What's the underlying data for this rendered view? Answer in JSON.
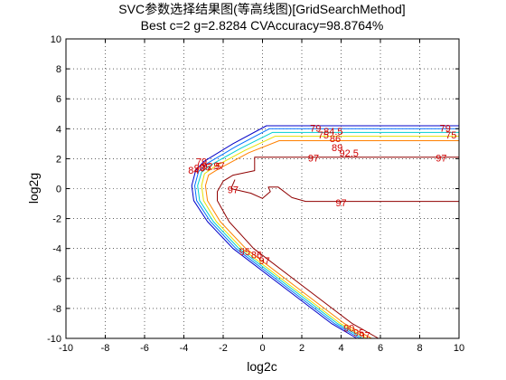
{
  "chart_data": {
    "type": "contour",
    "title_lines": [
      "SVC参数选择结果图(等高线图)[GridSearchMethod]",
      "Best c=2 g=2.8284 CVAccuracy=98.8764%"
    ],
    "xlabel": "log2c",
    "ylabel": "log2g",
    "xlim": [
      -10,
      10
    ],
    "ylim": [
      -10,
      10
    ],
    "x_ticks": [
      -10,
      -8,
      -6,
      -4,
      -2,
      0,
      2,
      4,
      6,
      8,
      10
    ],
    "y_ticks": [
      -10,
      -8,
      -6,
      -4,
      -2,
      0,
      2,
      4,
      6,
      8,
      10
    ],
    "x_tick_labels": [
      "-10",
      "-8",
      "-6",
      "-4",
      "-2",
      "0",
      "2",
      "4",
      "6",
      "8",
      "10"
    ],
    "y_tick_labels": [
      "-10",
      "-8",
      "-6",
      "-4",
      "-2",
      "0",
      "2",
      "4",
      "6",
      "8",
      "10"
    ],
    "grid": true,
    "label_color": "#d00000",
    "levels": [
      {
        "level": 79,
        "color": "#0000c8",
        "points": [
          [
            10,
            4.2
          ],
          [
            0.2,
            4.2
          ],
          [
            -1.5,
            3.0
          ],
          [
            -3.0,
            1.8
          ],
          [
            -3.4,
            1.2
          ],
          [
            -3.6,
            0.2
          ],
          [
            -3.5,
            -0.8
          ],
          [
            -2.8,
            -2.2
          ],
          [
            -1.5,
            -4.0
          ],
          [
            1.0,
            -6.5
          ],
          [
            3.5,
            -9.0
          ],
          [
            4.8,
            -10
          ]
        ]
      },
      {
        "level": 84.5,
        "color": "#0070ff",
        "points": [
          [
            10,
            4.0
          ],
          [
            0.35,
            4.0
          ],
          [
            -1.3,
            2.85
          ],
          [
            -2.8,
            1.7
          ],
          [
            -3.25,
            1.15
          ],
          [
            -3.45,
            0.2
          ],
          [
            -3.35,
            -0.8
          ],
          [
            -2.65,
            -2.2
          ],
          [
            -1.35,
            -4.0
          ],
          [
            1.15,
            -6.5
          ],
          [
            3.65,
            -9.0
          ],
          [
            4.95,
            -10
          ]
        ]
      },
      {
        "level": 90,
        "color": "#00d0d0",
        "points": [
          [
            10,
            3.75
          ],
          [
            0.5,
            3.75
          ],
          [
            -1.1,
            2.7
          ],
          [
            -2.6,
            1.6
          ],
          [
            -3.1,
            1.1
          ],
          [
            -3.3,
            0.2
          ],
          [
            -3.2,
            -0.8
          ],
          [
            -2.5,
            -2.2
          ],
          [
            -1.2,
            -4.0
          ],
          [
            1.3,
            -6.5
          ],
          [
            3.8,
            -9.0
          ],
          [
            5.1,
            -10
          ]
        ]
      },
      {
        "level": 92.5,
        "color": "#e8e000",
        "points": [
          [
            10,
            3.5
          ],
          [
            0.65,
            3.5
          ],
          [
            -0.9,
            2.55
          ],
          [
            -2.4,
            1.5
          ],
          [
            -2.95,
            1.0
          ],
          [
            -3.1,
            0.2
          ],
          [
            -3.0,
            -0.8
          ],
          [
            -2.35,
            -2.2
          ],
          [
            -1.05,
            -4.0
          ],
          [
            1.45,
            -6.5
          ],
          [
            3.95,
            -9.0
          ],
          [
            5.3,
            -10
          ]
        ]
      },
      {
        "level": 95,
        "color": "#ff8000",
        "points": [
          [
            10,
            3.2
          ],
          [
            0.85,
            3.2
          ],
          [
            -0.7,
            2.4
          ],
          [
            -2.2,
            1.35
          ],
          [
            -2.75,
            0.9
          ],
          [
            -2.9,
            0.2
          ],
          [
            -2.8,
            -0.8
          ],
          [
            -2.15,
            -2.2
          ],
          [
            -0.85,
            -4.0
          ],
          [
            1.65,
            -6.5
          ],
          [
            4.15,
            -9.0
          ],
          [
            5.55,
            -10
          ]
        ]
      },
      {
        "level": 97,
        "color": "#900000",
        "points": [
          [
            10,
            2.1
          ],
          [
            -0.4,
            2.1
          ],
          [
            -0.4,
            1.2
          ],
          [
            -1.5,
            0.9
          ],
          [
            -2.0,
            0.5
          ],
          [
            -2.3,
            -0.2
          ],
          [
            -2.3,
            -0.8
          ],
          [
            -1.7,
            -2.2
          ],
          [
            -0.45,
            -4.0
          ],
          [
            2.05,
            -6.5
          ],
          [
            4.55,
            -9.0
          ],
          [
            5.9,
            -10
          ]
        ]
      },
      {
        "level": 97,
        "color": "#900000",
        "points": [
          [
            -1.4,
            0.6
          ],
          [
            -1.6,
            0.0
          ],
          [
            -0.6,
            -0.3
          ],
          [
            0.0,
            -0.65
          ],
          [
            0.4,
            -0.2
          ],
          [
            0.3,
            0.1
          ],
          [
            0.8,
            0.1
          ],
          [
            1.5,
            -0.6
          ],
          [
            2.2,
            -0.85
          ],
          [
            10,
            -0.85
          ]
        ]
      }
    ],
    "labels": [
      {
        "text": "79",
        "x": 2.7,
        "y": 4.05,
        "color": "#d00000"
      },
      {
        "text": "84.5",
        "x": 3.6,
        "y": 3.85,
        "color": "#d00000"
      },
      {
        "text": "75",
        "x": 3.1,
        "y": 3.6,
        "color": "#d00000"
      },
      {
        "text": "86",
        "x": 3.7,
        "y": 3.35,
        "color": "#d00000"
      },
      {
        "text": "89",
        "x": 3.8,
        "y": 2.75,
        "color": "#d00000"
      },
      {
        "text": "92.5",
        "x": 4.4,
        "y": 2.4,
        "color": "#d00000"
      },
      {
        "text": "97",
        "x": 2.6,
        "y": 2.05,
        "color": "#d00000"
      },
      {
        "text": "79",
        "x": 9.3,
        "y": 4.05,
        "color": "#d00000"
      },
      {
        "text": "75",
        "x": 9.6,
        "y": 3.6,
        "color": "#d00000"
      },
      {
        "text": "97",
        "x": 9.1,
        "y": 2.05,
        "color": "#d00000"
      },
      {
        "text": "97",
        "x": -1.5,
        "y": -0.05,
        "color": "#d00000"
      },
      {
        "text": "97",
        "x": 4.0,
        "y": -0.95,
        "color": "#d00000"
      },
      {
        "text": "92.5",
        "x": -2.6,
        "y": 1.5,
        "color": "#d00000"
      },
      {
        "text": "95",
        "x": -2.9,
        "y": 1.45,
        "color": "#d00000"
      },
      {
        "text": "90",
        "x": -3.2,
        "y": 1.4,
        "color": "#d00000"
      },
      {
        "text": "84",
        "x": -3.5,
        "y": 1.25,
        "color": "#d00000"
      },
      {
        "text": "79",
        "x": -3.1,
        "y": 1.8,
        "color": "#d00000"
      },
      {
        "text": "97",
        "x": -2.2,
        "y": 1.55,
        "color": "#d00000"
      },
      {
        "text": "95",
        "x": -0.9,
        "y": -4.2,
        "color": "#d00000"
      },
      {
        "text": "86",
        "x": -0.3,
        "y": -4.4,
        "color": "#d00000"
      },
      {
        "text": "97",
        "x": 0.1,
        "y": -4.8,
        "color": "#d00000"
      },
      {
        "text": "90",
        "x": 4.4,
        "y": -9.3,
        "color": "#d00000"
      },
      {
        "text": "95",
        "x": 4.9,
        "y": -9.6,
        "color": "#d00000"
      },
      {
        "text": "97",
        "x": 5.2,
        "y": -9.8,
        "color": "#d00000"
      }
    ]
  }
}
